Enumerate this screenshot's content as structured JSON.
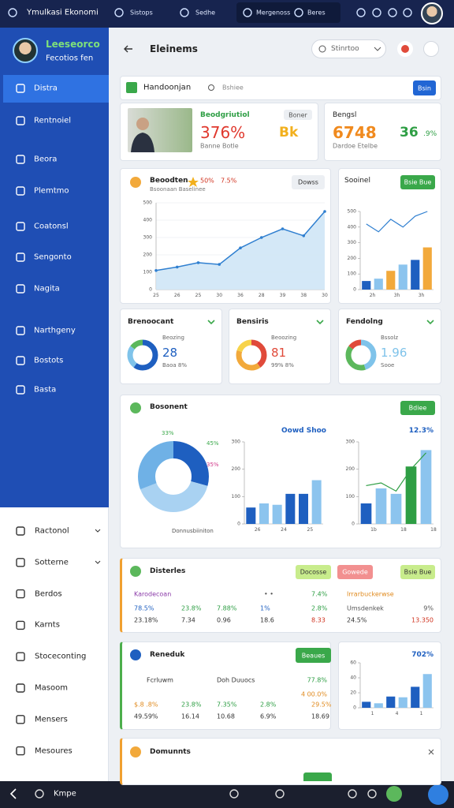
{
  "topbar": {
    "app": "Ymulkasi Ekonomi",
    "tabs": [
      "Sistops",
      "Sedhe",
      "Mergenoss",
      "Beres"
    ]
  },
  "sidebar": {
    "user": "Leeseorco",
    "role": "Fecotios fen",
    "menu": [
      "Distra",
      "Rentnoiel",
      "Beora",
      "Plemtmo",
      "Coatonsl",
      "Sengonto",
      "Nagita",
      "Narthgeny",
      "Bostots",
      "Basta"
    ],
    "menu_lower": [
      "Ractonol",
      "Sotterne",
      "Berdos",
      "Karnts",
      "Stoceconting",
      "Masoom",
      "Mensers",
      "Mesoures"
    ]
  },
  "bottombar": {
    "label": "Kmpe"
  },
  "header": {
    "title": "Eleinems",
    "dropdown": "Stinrtoo"
  },
  "search": {
    "title": "Handoonjan",
    "placeholder": "Bshiee",
    "button": "Bsin"
  },
  "stat_cards": [
    {
      "label": "Beodgriutiol",
      "badge": "Boner",
      "value": "376%",
      "value2": "Bk",
      "sub": "Banne Botle"
    },
    {
      "label": "Bengsl",
      "value": "6748",
      "value2": "36",
      "value3": ".9%",
      "sub": "Dardoe Etelbe"
    }
  ],
  "chart_data": [
    {
      "type": "line",
      "title": "Beoodten",
      "stats": [
        "50%",
        "7.5%"
      ],
      "subtitle": "Bsoonaan Baselinee",
      "button": "Dowss",
      "categories": [
        "25",
        "26",
        "25",
        "30",
        "36",
        "28",
        "39",
        "38",
        "30"
      ],
      "values": [
        110,
        130,
        155,
        145,
        240,
        300,
        350,
        310,
        450
      ],
      "color": "#2f7fd0",
      "ylim": [
        0,
        500
      ],
      "yticks": [
        0,
        100,
        200,
        300,
        400,
        500
      ],
      "grid": true
    },
    {
      "type": "bar",
      "title": "Sooinel",
      "button": "Bsie Bue",
      "categories": [
        "2h",
        null,
        "3h",
        null,
        "3h",
        null
      ],
      "values": [
        55,
        70,
        120,
        160,
        190,
        270
      ],
      "colors": [
        "#1e5fc0",
        "#8cc4ee",
        "#f2a93b",
        "#8cc4ee",
        "#1e5fc0",
        "#f2a93b"
      ],
      "line_values": [
        420,
        370,
        450,
        400,
        470,
        500
      ],
      "line_color": "#2f7fd0",
      "ylim": [
        0,
        500
      ],
      "yticks": [
        0,
        100,
        200,
        300,
        400,
        500
      ]
    },
    {
      "type": "donut",
      "title": "Brenoocant",
      "center_label": "Beozing",
      "value_text": "28",
      "note": "Baoa 8%",
      "values": [
        60,
        25,
        15
      ],
      "colors": [
        "#1e5fc0",
        "#7fc3ea",
        "#5cb85c"
      ]
    },
    {
      "type": "donut",
      "title": "Bensiris",
      "center_label": "Beoozing",
      "value_text": "81",
      "note": "99% 8%",
      "values": [
        40,
        40,
        20
      ],
      "colors": [
        "#e04a3a",
        "#f2a93b",
        "#f7d34a"
      ]
    },
    {
      "type": "donut",
      "title": "Fendolng",
      "center_label": "Bssolz",
      "value_text": "1.96",
      "note": "Sooe",
      "values": [
        45,
        40,
        15
      ],
      "colors": [
        "#7fc3ea",
        "#5cb85c",
        "#e04a3a"
      ]
    },
    {
      "type": "donut",
      "title": "Bosonent",
      "button": "Bdiee",
      "footnote": "Donnusbiiniton",
      "values": [
        33,
        45,
        35
      ],
      "value_labels": [
        "33%",
        "45%",
        "35%"
      ],
      "colors": [
        "#1e5fc0",
        "#a9d2f2",
        "#6fb1e6"
      ]
    },
    {
      "type": "bar",
      "title": "Oowd Shoo",
      "categories": [
        "26",
        null,
        "24",
        null,
        "25",
        null
      ],
      "values": [
        60,
        75,
        70,
        110,
        110,
        160
      ],
      "colors": [
        "#1e5fc0",
        "#8cc4ee",
        "#8cc4ee",
        "#1e5fc0",
        "#1e5fc0",
        "#8cc4ee"
      ],
      "ylim": [
        0,
        300
      ],
      "yticks": [
        0,
        100,
        200,
        300
      ]
    },
    {
      "type": "bar",
      "title": "12.3%",
      "categories": [
        "1b",
        null,
        "18",
        null,
        "18"
      ],
      "values": [
        75,
        130,
        110,
        210,
        270
      ],
      "colors": [
        "#1e5fc0",
        "#8cc4ee",
        "#8cc4ee",
        "#2e9e44",
        "#8cc4ee"
      ],
      "line_values": [
        140,
        150,
        120,
        200,
        260
      ],
      "line_color": "#2e9e44",
      "ylim": [
        0,
        300
      ],
      "yticks": [
        0,
        100,
        200,
        300
      ]
    },
    {
      "type": "bar",
      "title": "702%",
      "categories": [
        "1",
        null,
        "4",
        null,
        "1",
        null
      ],
      "values": [
        8,
        6,
        15,
        14,
        28,
        45
      ],
      "colors": [
        "#1e5fc0",
        "#8cc4ee",
        "#1e5fc0",
        "#8cc4ee",
        "#1e5fc0",
        "#8cc4ee"
      ],
      "ylim": [
        0,
        60
      ],
      "yticks": [
        0,
        20,
        40,
        60
      ]
    }
  ],
  "tables": [
    {
      "title": "Disterles",
      "buttons": [
        "Docosse",
        "Gowede",
        "Bsie Bue"
      ],
      "rows": [
        [
          "Karodecoan",
          "• •",
          "7.4%",
          "Irrarbuckerwse"
        ],
        [
          "78.5%",
          "23.8%",
          "7.88%",
          "1%",
          "2.8%",
          "Umsdenkek",
          "9%"
        ],
        [
          "23.18%",
          "7.34",
          "0.96",
          "18.6",
          "8.33",
          "24.5%",
          "13.350"
        ]
      ]
    },
    {
      "title": "Reneduk",
      "buttons": [
        "Beaues"
      ],
      "rows": [
        [
          "Fcrluwm",
          "Doh Duuocs",
          "77.8%"
        ],
        [
          "4 00.0%"
        ],
        [
          "$.8 .8%",
          "23.8%",
          "7.35%",
          "2.8%",
          "29.5%"
        ],
        [
          "49.59%",
          "16.14",
          "10.68",
          "6.9%",
          "18.69"
        ]
      ]
    }
  ],
  "documents": {
    "title": "Domunnts"
  }
}
